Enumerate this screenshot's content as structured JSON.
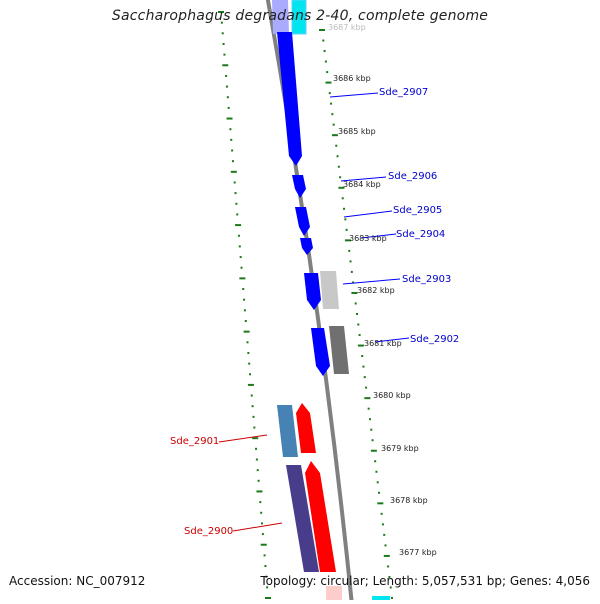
{
  "header": {
    "title": "Saccharophagus degradans 2-40, complete genome"
  },
  "footer": {
    "accession": "Accession: NC_007912",
    "summary": "Topology: circular; Length: 5,057,531 bp; Genes: 4,056"
  },
  "colors": {
    "forward_gene": "#0000ff",
    "reverse_gene": "#ff0000",
    "label_forward": "#0000cc",
    "label_reverse": "#cc0000",
    "scale_dots": "#1a7a1a",
    "backbone": "#808080",
    "cyan_gene": "#00e5ee",
    "steelblue_gene": "#4682b4",
    "slate_gene": "#483d8b"
  },
  "scale": {
    "ticks": [
      "3687 kbp",
      "3686 kbp",
      "3685 kbp",
      "3684 kbp",
      "3683 kbp",
      "3682 kbp",
      "3681 kbp",
      "3680 kbp",
      "3679 kbp",
      "3678 kbp",
      "3677 kbp"
    ]
  },
  "genes": [
    {
      "name": "Sde_2907",
      "strand": "forward"
    },
    {
      "name": "Sde_2906",
      "strand": "forward"
    },
    {
      "name": "Sde_2905",
      "strand": "forward"
    },
    {
      "name": "Sde_2904",
      "strand": "forward"
    },
    {
      "name": "Sde_2903",
      "strand": "forward"
    },
    {
      "name": "Sde_2902",
      "strand": "forward"
    },
    {
      "name": "Sde_2901",
      "strand": "reverse"
    },
    {
      "name": "Sde_2900",
      "strand": "reverse"
    }
  ]
}
